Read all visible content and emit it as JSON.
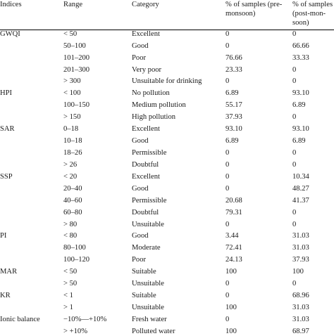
{
  "headers": {
    "indices": "Indices",
    "range": "Range",
    "category": "Category",
    "pre": [
      "% of samples (pre-",
      "monsoon)"
    ],
    "post": [
      "% of samples",
      "(post-mon-",
      "soon)"
    ]
  },
  "rows": [
    {
      "index": "GWQI",
      "range": "< 50",
      "category": "Excellent",
      "pre": "0",
      "post": "0"
    },
    {
      "index": "",
      "range": "50–100",
      "category": "Good",
      "pre": "0",
      "post": "66.66"
    },
    {
      "index": "",
      "range": "101–200",
      "category": "Poor",
      "pre": "76.66",
      "post": "33.33"
    },
    {
      "index": "",
      "range": "201–300",
      "category": "Very poor",
      "pre": "23.33",
      "post": "0"
    },
    {
      "index": "",
      "range": "> 300",
      "category": "Unsuitable for drinking",
      "pre": "0",
      "post": "0"
    },
    {
      "index": "HPI",
      "range": "< 100",
      "category": "No pollution",
      "pre": "6.89",
      "post": "93.10"
    },
    {
      "index": "",
      "range": "100–150",
      "category": "Medium pollution",
      "pre": "55.17",
      "post": "6.89"
    },
    {
      "index": "",
      "range": "> 150",
      "category": "High pollution",
      "pre": "37.93",
      "post": "0"
    },
    {
      "index": "SAR",
      "range": "0–18",
      "category": "Excellent",
      "pre": "93.10",
      "post": "93.10"
    },
    {
      "index": "",
      "range": "10–18",
      "category": "Good",
      "pre": "6.89",
      "post": "6.89"
    },
    {
      "index": "",
      "range": "18–26",
      "category": "Permissible",
      "pre": "0",
      "post": "0"
    },
    {
      "index": "",
      "range": "> 26",
      "category": "Doubtful",
      "pre": "0",
      "post": "0"
    },
    {
      "index": "SSP",
      "range": "< 20",
      "category": "Excellent",
      "pre": "0",
      "post": "10.34"
    },
    {
      "index": "",
      "range": "20–40",
      "category": "Good",
      "pre": "0",
      "post": "48.27"
    },
    {
      "index": "",
      "range": "40–60",
      "category": "Permissible",
      "pre": "20.68",
      "post": "41.37"
    },
    {
      "index": "",
      "range": "60–80",
      "category": "Doubtful",
      "pre": "79.31",
      "post": "0"
    },
    {
      "index": "",
      "range": "> 80",
      "category": "Unsuitable",
      "pre": "0",
      "post": "0"
    },
    {
      "index": "PI",
      "range": "< 80",
      "category": "Good",
      "pre": "3.44",
      "post": "31.03"
    },
    {
      "index": "",
      "range": "80–100",
      "category": "Moderate",
      "pre": "72.41",
      "post": "31.03"
    },
    {
      "index": "",
      "range": "100–120",
      "category": "Poor",
      "pre": "24.13",
      "post": "37.93"
    },
    {
      "index": "MAR",
      "range": "< 50",
      "category": "Suitable",
      "pre": "100",
      "post": "100"
    },
    {
      "index": "",
      "range": "> 50",
      "category": "Unsuitable",
      "pre": "0",
      "post": "0"
    },
    {
      "index": "KR",
      "range": "< 1",
      "category": "Suitable",
      "pre": "0",
      "post": "68.96"
    },
    {
      "index": "",
      "range": "> 1",
      "category": "Unsuitable",
      "pre": "100",
      "post": "31.03"
    },
    {
      "index": "Ionic balance",
      "range": "−10%—+10%",
      "category": "Fresh water",
      "pre": "0",
      "post": "31.03"
    },
    {
      "index": "",
      "range": "> +10%",
      "category": "Polluted water",
      "pre": "100",
      "post": "68.97"
    }
  ]
}
